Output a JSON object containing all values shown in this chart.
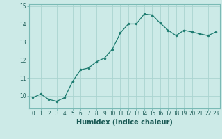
{
  "x": [
    0,
    1,
    2,
    3,
    4,
    5,
    6,
    7,
    8,
    9,
    10,
    11,
    12,
    13,
    14,
    15,
    16,
    17,
    18,
    19,
    20,
    21,
    22,
    23
  ],
  "y": [
    9.9,
    10.1,
    9.8,
    9.7,
    9.9,
    10.8,
    11.45,
    11.55,
    11.9,
    12.1,
    12.6,
    13.5,
    14.0,
    14.0,
    14.55,
    14.5,
    14.05,
    13.65,
    13.35,
    13.65,
    13.55,
    13.45,
    13.35,
    13.55
  ],
  "line_color": "#1a7a6e",
  "marker": "o",
  "marker_size": 2.0,
  "bg_color": "#cceae7",
  "grid_color": "#aad4d0",
  "xlabel": "Humidex (Indice chaleur)",
  "ylim": [
    9.3,
    15.1
  ],
  "xlim": [
    -0.5,
    23.5
  ],
  "yticks": [
    10,
    11,
    12,
    13,
    14,
    15
  ],
  "xticks": [
    0,
    1,
    2,
    3,
    4,
    5,
    6,
    7,
    8,
    9,
    10,
    11,
    12,
    13,
    14,
    15,
    16,
    17,
    18,
    19,
    20,
    21,
    22,
    23
  ],
  "tick_fontsize": 5.5,
  "xlabel_fontsize": 7.0,
  "linewidth": 0.9
}
